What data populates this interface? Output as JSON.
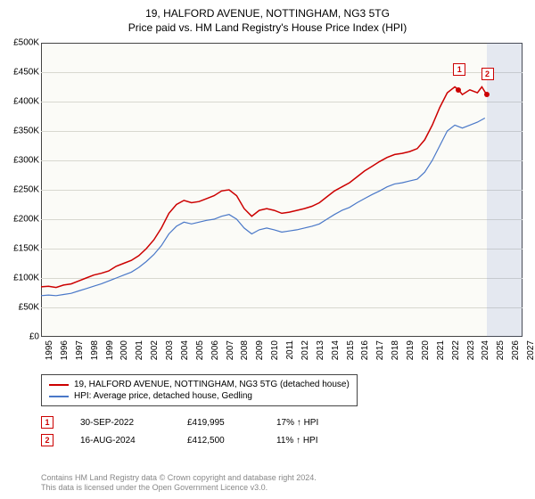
{
  "title": "19, HALFORD AVENUE, NOTTINGHAM, NG3 5TG",
  "subtitle": "Price paid vs. HM Land Registry's House Price Index (HPI)",
  "chart": {
    "type": "line",
    "background_color": "#fbfbf7",
    "grid_color": "#d8d8d0",
    "border_color": "#444444",
    "x_start": 1995,
    "x_end": 2027,
    "xtick_step": 1,
    "y_start": 0,
    "y_end": 500000,
    "ytick_step": 50000,
    "y_prefix": "£",
    "y_suffix": "K",
    "series": [
      {
        "name": "19, HALFORD AVENUE, NOTTINGHAM, NG3 5TG (detached house)",
        "color": "#cc0000",
        "line_width": 1.5,
        "points": [
          [
            1995.0,
            85000
          ],
          [
            1995.5,
            86000
          ],
          [
            1996.0,
            84000
          ],
          [
            1996.5,
            88000
          ],
          [
            1997.0,
            90000
          ],
          [
            1997.5,
            95000
          ],
          [
            1998.0,
            100000
          ],
          [
            1998.5,
            105000
          ],
          [
            1999.0,
            108000
          ],
          [
            1999.5,
            112000
          ],
          [
            2000.0,
            120000
          ],
          [
            2000.5,
            125000
          ],
          [
            2001.0,
            130000
          ],
          [
            2001.5,
            138000
          ],
          [
            2002.0,
            150000
          ],
          [
            2002.5,
            165000
          ],
          [
            2003.0,
            185000
          ],
          [
            2003.5,
            210000
          ],
          [
            2004.0,
            225000
          ],
          [
            2004.5,
            232000
          ],
          [
            2005.0,
            228000
          ],
          [
            2005.5,
            230000
          ],
          [
            2006.0,
            235000
          ],
          [
            2006.5,
            240000
          ],
          [
            2007.0,
            248000
          ],
          [
            2007.5,
            250000
          ],
          [
            2008.0,
            240000
          ],
          [
            2008.5,
            218000
          ],
          [
            2009.0,
            205000
          ],
          [
            2009.5,
            215000
          ],
          [
            2010.0,
            218000
          ],
          [
            2010.5,
            215000
          ],
          [
            2011.0,
            210000
          ],
          [
            2011.5,
            212000
          ],
          [
            2012.0,
            215000
          ],
          [
            2012.5,
            218000
          ],
          [
            2013.0,
            222000
          ],
          [
            2013.5,
            228000
          ],
          [
            2014.0,
            238000
          ],
          [
            2014.5,
            248000
          ],
          [
            2015.0,
            255000
          ],
          [
            2015.5,
            262000
          ],
          [
            2016.0,
            272000
          ],
          [
            2016.5,
            282000
          ],
          [
            2017.0,
            290000
          ],
          [
            2017.5,
            298000
          ],
          [
            2018.0,
            305000
          ],
          [
            2018.5,
            310000
          ],
          [
            2019.0,
            312000
          ],
          [
            2019.5,
            315000
          ],
          [
            2020.0,
            320000
          ],
          [
            2020.5,
            335000
          ],
          [
            2021.0,
            360000
          ],
          [
            2021.5,
            390000
          ],
          [
            2022.0,
            415000
          ],
          [
            2022.5,
            425000
          ],
          [
            2022.75,
            419995
          ],
          [
            2023.0,
            412000
          ],
          [
            2023.5,
            420000
          ],
          [
            2024.0,
            415000
          ],
          [
            2024.3,
            425000
          ],
          [
            2024.6,
            412500
          ]
        ]
      },
      {
        "name": "HPI: Average price, detached house, Gedling",
        "color": "#4a78c8",
        "line_width": 1.2,
        "points": [
          [
            1995.0,
            70000
          ],
          [
            1995.5,
            71000
          ],
          [
            1996.0,
            70000
          ],
          [
            1996.5,
            72000
          ],
          [
            1997.0,
            74000
          ],
          [
            1997.5,
            78000
          ],
          [
            1998.0,
            82000
          ],
          [
            1998.5,
            86000
          ],
          [
            1999.0,
            90000
          ],
          [
            1999.5,
            95000
          ],
          [
            2000.0,
            100000
          ],
          [
            2000.5,
            105000
          ],
          [
            2001.0,
            110000
          ],
          [
            2001.5,
            118000
          ],
          [
            2002.0,
            128000
          ],
          [
            2002.5,
            140000
          ],
          [
            2003.0,
            155000
          ],
          [
            2003.5,
            175000
          ],
          [
            2004.0,
            188000
          ],
          [
            2004.5,
            195000
          ],
          [
            2005.0,
            192000
          ],
          [
            2005.5,
            195000
          ],
          [
            2006.0,
            198000
          ],
          [
            2006.5,
            200000
          ],
          [
            2007.0,
            205000
          ],
          [
            2007.5,
            208000
          ],
          [
            2008.0,
            200000
          ],
          [
            2008.5,
            185000
          ],
          [
            2009.0,
            175000
          ],
          [
            2009.5,
            182000
          ],
          [
            2010.0,
            185000
          ],
          [
            2010.5,
            182000
          ],
          [
            2011.0,
            178000
          ],
          [
            2011.5,
            180000
          ],
          [
            2012.0,
            182000
          ],
          [
            2012.5,
            185000
          ],
          [
            2013.0,
            188000
          ],
          [
            2013.5,
            192000
          ],
          [
            2014.0,
            200000
          ],
          [
            2014.5,
            208000
          ],
          [
            2015.0,
            215000
          ],
          [
            2015.5,
            220000
          ],
          [
            2016.0,
            228000
          ],
          [
            2016.5,
            235000
          ],
          [
            2017.0,
            242000
          ],
          [
            2017.5,
            248000
          ],
          [
            2018.0,
            255000
          ],
          [
            2018.5,
            260000
          ],
          [
            2019.0,
            262000
          ],
          [
            2019.5,
            265000
          ],
          [
            2020.0,
            268000
          ],
          [
            2020.5,
            280000
          ],
          [
            2021.0,
            300000
          ],
          [
            2021.5,
            325000
          ],
          [
            2022.0,
            350000
          ],
          [
            2022.5,
            360000
          ],
          [
            2023.0,
            355000
          ],
          [
            2023.5,
            360000
          ],
          [
            2024.0,
            365000
          ],
          [
            2024.5,
            372000
          ]
        ]
      }
    ],
    "markers": [
      {
        "label": "1",
        "x": 2022.75,
        "y": 419995
      },
      {
        "label": "2",
        "x": 2024.6,
        "y": 412500
      }
    ],
    "shade": {
      "x_from": 2024.6,
      "x_to": 2027.0
    }
  },
  "legend": {
    "items": [
      {
        "color": "#cc0000",
        "label": "19, HALFORD AVENUE, NOTTINGHAM, NG3 5TG (detached house)"
      },
      {
        "color": "#4a78c8",
        "label": "HPI: Average price, detached house, Gedling"
      }
    ]
  },
  "sales": [
    {
      "marker": "1",
      "date": "30-SEP-2022",
      "price": "£419,995",
      "pct": "17% ↑ HPI"
    },
    {
      "marker": "2",
      "date": "16-AUG-2024",
      "price": "£412,500",
      "pct": "11% ↑ HPI"
    }
  ],
  "footer_line1": "Contains HM Land Registry data © Crown copyright and database right 2024.",
  "footer_line2": "This data is licensed under the Open Government Licence v3.0."
}
